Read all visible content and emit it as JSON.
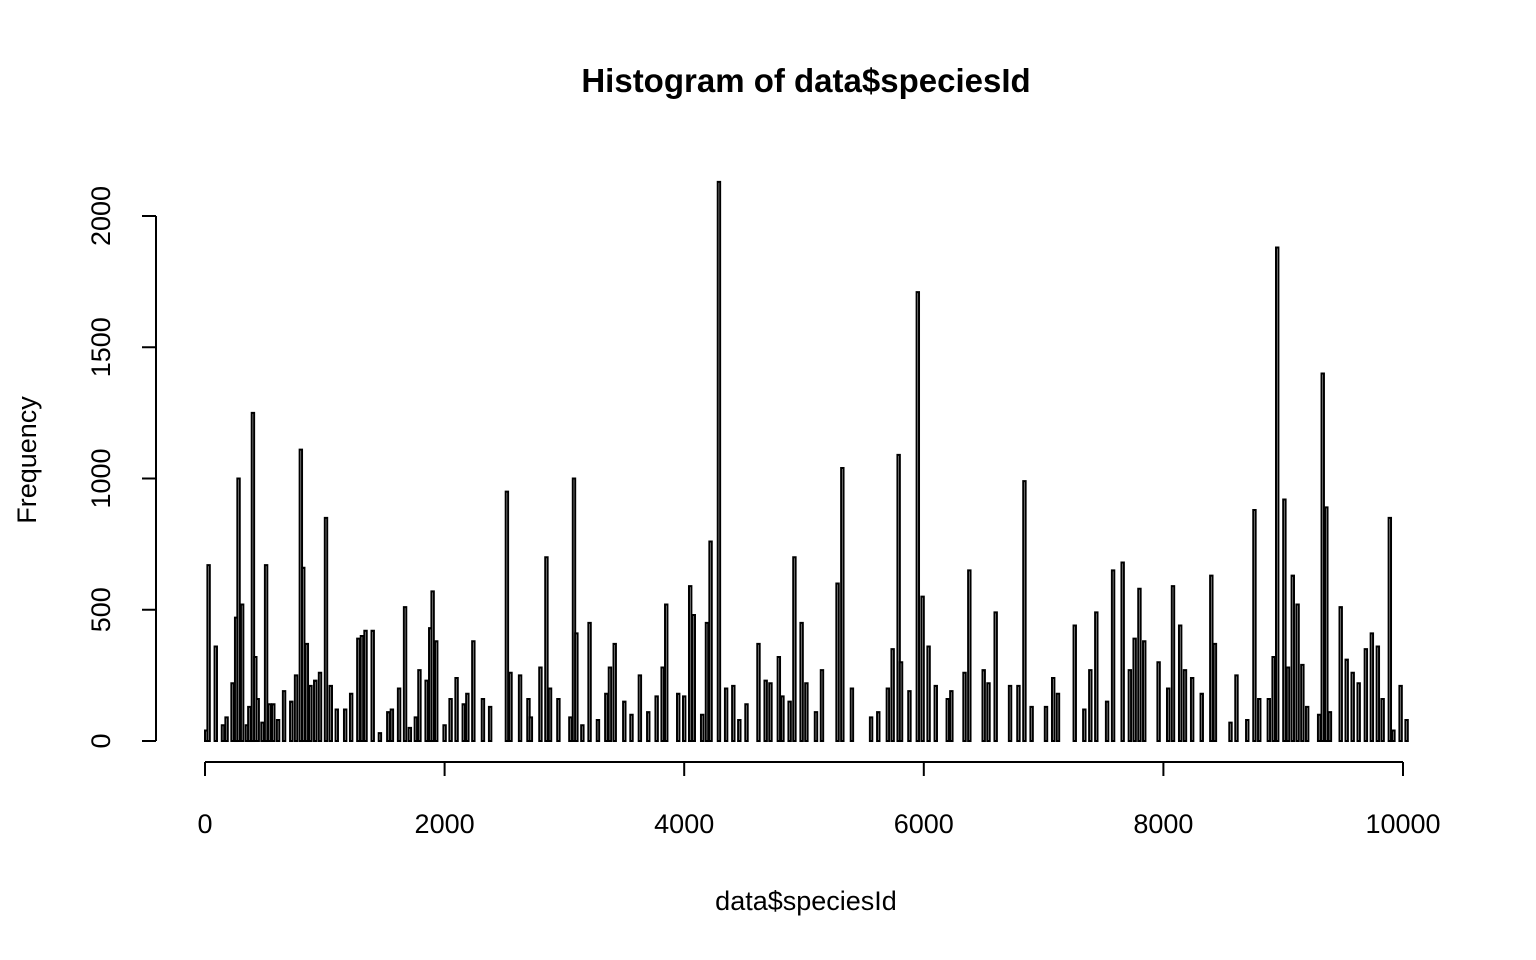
{
  "chart_data": {
    "type": "bar",
    "title": "Histogram of data$speciesId",
    "xlabel": "data$speciesId",
    "ylabel": "Frequency",
    "xlim": [
      0,
      10000
    ],
    "ylim": [
      0,
      2000
    ],
    "x_ticks": [
      0,
      2000,
      4000,
      6000,
      8000,
      10000
    ],
    "y_ticks": [
      0,
      500,
      1000,
      1500,
      2000
    ],
    "grid": false,
    "bin_width": 20,
    "bins": [
      {
        "x": 10,
        "y": 40
      },
      {
        "x": 30,
        "y": 670
      },
      {
        "x": 90,
        "y": 360
      },
      {
        "x": 150,
        "y": 60
      },
      {
        "x": 180,
        "y": 90
      },
      {
        "x": 230,
        "y": 220
      },
      {
        "x": 260,
        "y": 470
      },
      {
        "x": 280,
        "y": 1000
      },
      {
        "x": 310,
        "y": 520
      },
      {
        "x": 350,
        "y": 60
      },
      {
        "x": 370,
        "y": 130
      },
      {
        "x": 400,
        "y": 1250
      },
      {
        "x": 420,
        "y": 320
      },
      {
        "x": 440,
        "y": 160
      },
      {
        "x": 480,
        "y": 70
      },
      {
        "x": 510,
        "y": 670
      },
      {
        "x": 540,
        "y": 140
      },
      {
        "x": 570,
        "y": 140
      },
      {
        "x": 610,
        "y": 80
      },
      {
        "x": 660,
        "y": 190
      },
      {
        "x": 720,
        "y": 150
      },
      {
        "x": 760,
        "y": 250
      },
      {
        "x": 800,
        "y": 1110
      },
      {
        "x": 820,
        "y": 660
      },
      {
        "x": 850,
        "y": 370
      },
      {
        "x": 880,
        "y": 210
      },
      {
        "x": 920,
        "y": 230
      },
      {
        "x": 960,
        "y": 260
      },
      {
        "x": 1010,
        "y": 850
      },
      {
        "x": 1050,
        "y": 210
      },
      {
        "x": 1100,
        "y": 120
      },
      {
        "x": 1170,
        "y": 120
      },
      {
        "x": 1220,
        "y": 180
      },
      {
        "x": 1280,
        "y": 390
      },
      {
        "x": 1310,
        "y": 400
      },
      {
        "x": 1340,
        "y": 420
      },
      {
        "x": 1400,
        "y": 420
      },
      {
        "x": 1460,
        "y": 30
      },
      {
        "x": 1530,
        "y": 110
      },
      {
        "x": 1560,
        "y": 120
      },
      {
        "x": 1620,
        "y": 200
      },
      {
        "x": 1670,
        "y": 510
      },
      {
        "x": 1710,
        "y": 50
      },
      {
        "x": 1760,
        "y": 90
      },
      {
        "x": 1790,
        "y": 270
      },
      {
        "x": 1850,
        "y": 230
      },
      {
        "x": 1880,
        "y": 430
      },
      {
        "x": 1900,
        "y": 570
      },
      {
        "x": 1930,
        "y": 380
      },
      {
        "x": 2000,
        "y": 60
      },
      {
        "x": 2050,
        "y": 160
      },
      {
        "x": 2100,
        "y": 240
      },
      {
        "x": 2160,
        "y": 140
      },
      {
        "x": 2190,
        "y": 180
      },
      {
        "x": 2240,
        "y": 380
      },
      {
        "x": 2320,
        "y": 160
      },
      {
        "x": 2380,
        "y": 130
      },
      {
        "x": 2520,
        "y": 950
      },
      {
        "x": 2550,
        "y": 260
      },
      {
        "x": 2630,
        "y": 250
      },
      {
        "x": 2700,
        "y": 160
      },
      {
        "x": 2720,
        "y": 90
      },
      {
        "x": 2800,
        "y": 280
      },
      {
        "x": 2850,
        "y": 700
      },
      {
        "x": 2880,
        "y": 200
      },
      {
        "x": 2950,
        "y": 160
      },
      {
        "x": 3050,
        "y": 90
      },
      {
        "x": 3080,
        "y": 1000
      },
      {
        "x": 3100,
        "y": 410
      },
      {
        "x": 3150,
        "y": 60
      },
      {
        "x": 3210,
        "y": 450
      },
      {
        "x": 3280,
        "y": 80
      },
      {
        "x": 3350,
        "y": 180
      },
      {
        "x": 3380,
        "y": 280
      },
      {
        "x": 3420,
        "y": 370
      },
      {
        "x": 3500,
        "y": 150
      },
      {
        "x": 3560,
        "y": 100
      },
      {
        "x": 3630,
        "y": 250
      },
      {
        "x": 3700,
        "y": 110
      },
      {
        "x": 3770,
        "y": 170
      },
      {
        "x": 3820,
        "y": 280
      },
      {
        "x": 3850,
        "y": 520
      },
      {
        "x": 3950,
        "y": 180
      },
      {
        "x": 4000,
        "y": 170
      },
      {
        "x": 4050,
        "y": 590
      },
      {
        "x": 4080,
        "y": 480
      },
      {
        "x": 4150,
        "y": 100
      },
      {
        "x": 4190,
        "y": 450
      },
      {
        "x": 4220,
        "y": 760
      },
      {
        "x": 4290,
        "y": 2130
      },
      {
        "x": 4350,
        "y": 200
      },
      {
        "x": 4410,
        "y": 210
      },
      {
        "x": 4460,
        "y": 80
      },
      {
        "x": 4520,
        "y": 140
      },
      {
        "x": 4620,
        "y": 370
      },
      {
        "x": 4680,
        "y": 230
      },
      {
        "x": 4720,
        "y": 220
      },
      {
        "x": 4790,
        "y": 320
      },
      {
        "x": 4820,
        "y": 170
      },
      {
        "x": 4880,
        "y": 150
      },
      {
        "x": 4920,
        "y": 700
      },
      {
        "x": 4980,
        "y": 450
      },
      {
        "x": 5020,
        "y": 220
      },
      {
        "x": 5100,
        "y": 110
      },
      {
        "x": 5150,
        "y": 270
      },
      {
        "x": 5280,
        "y": 600
      },
      {
        "x": 5320,
        "y": 1040
      },
      {
        "x": 5400,
        "y": 200
      },
      {
        "x": 5560,
        "y": 90
      },
      {
        "x": 5620,
        "y": 110
      },
      {
        "x": 5700,
        "y": 200
      },
      {
        "x": 5740,
        "y": 350
      },
      {
        "x": 5790,
        "y": 1090
      },
      {
        "x": 5810,
        "y": 300
      },
      {
        "x": 5880,
        "y": 190
      },
      {
        "x": 5950,
        "y": 1710
      },
      {
        "x": 5990,
        "y": 550
      },
      {
        "x": 6040,
        "y": 360
      },
      {
        "x": 6100,
        "y": 210
      },
      {
        "x": 6200,
        "y": 160
      },
      {
        "x": 6230,
        "y": 190
      },
      {
        "x": 6340,
        "y": 260
      },
      {
        "x": 6380,
        "y": 650
      },
      {
        "x": 6500,
        "y": 270
      },
      {
        "x": 6540,
        "y": 220
      },
      {
        "x": 6600,
        "y": 490
      },
      {
        "x": 6720,
        "y": 210
      },
      {
        "x": 6790,
        "y": 210
      },
      {
        "x": 6840,
        "y": 990
      },
      {
        "x": 6900,
        "y": 130
      },
      {
        "x": 7020,
        "y": 130
      },
      {
        "x": 7080,
        "y": 240
      },
      {
        "x": 7120,
        "y": 180
      },
      {
        "x": 7260,
        "y": 440
      },
      {
        "x": 7340,
        "y": 120
      },
      {
        "x": 7390,
        "y": 270
      },
      {
        "x": 7440,
        "y": 490
      },
      {
        "x": 7530,
        "y": 150
      },
      {
        "x": 7580,
        "y": 650
      },
      {
        "x": 7660,
        "y": 680
      },
      {
        "x": 7720,
        "y": 270
      },
      {
        "x": 7760,
        "y": 390
      },
      {
        "x": 7800,
        "y": 580
      },
      {
        "x": 7840,
        "y": 380
      },
      {
        "x": 7960,
        "y": 300
      },
      {
        "x": 8040,
        "y": 200
      },
      {
        "x": 8080,
        "y": 590
      },
      {
        "x": 8140,
        "y": 440
      },
      {
        "x": 8180,
        "y": 270
      },
      {
        "x": 8240,
        "y": 240
      },
      {
        "x": 8320,
        "y": 180
      },
      {
        "x": 8400,
        "y": 630
      },
      {
        "x": 8430,
        "y": 370
      },
      {
        "x": 8560,
        "y": 70
      },
      {
        "x": 8610,
        "y": 250
      },
      {
        "x": 8700,
        "y": 80
      },
      {
        "x": 8760,
        "y": 880
      },
      {
        "x": 8800,
        "y": 160
      },
      {
        "x": 8880,
        "y": 160
      },
      {
        "x": 8920,
        "y": 320
      },
      {
        "x": 8950,
        "y": 1880
      },
      {
        "x": 9010,
        "y": 920
      },
      {
        "x": 9040,
        "y": 280
      },
      {
        "x": 9080,
        "y": 630
      },
      {
        "x": 9120,
        "y": 520
      },
      {
        "x": 9160,
        "y": 290
      },
      {
        "x": 9200,
        "y": 130
      },
      {
        "x": 9300,
        "y": 100
      },
      {
        "x": 9330,
        "y": 1400
      },
      {
        "x": 9360,
        "y": 890
      },
      {
        "x": 9390,
        "y": 110
      },
      {
        "x": 9480,
        "y": 510
      },
      {
        "x": 9530,
        "y": 310
      },
      {
        "x": 9580,
        "y": 260
      },
      {
        "x": 9630,
        "y": 220
      },
      {
        "x": 9690,
        "y": 350
      },
      {
        "x": 9740,
        "y": 410
      },
      {
        "x": 9790,
        "y": 360
      },
      {
        "x": 9830,
        "y": 160
      },
      {
        "x": 9890,
        "y": 850
      },
      {
        "x": 9920,
        "y": 40
      },
      {
        "x": 9980,
        "y": 210
      },
      {
        "x": 10030,
        "y": 80
      }
    ]
  }
}
